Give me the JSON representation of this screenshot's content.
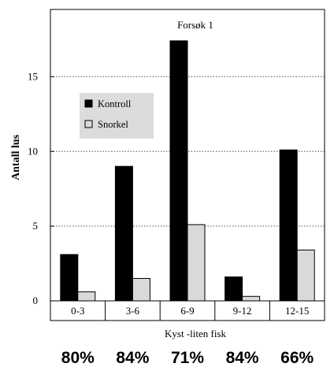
{
  "chart_data": {
    "type": "bar",
    "title": "Forsøk 1",
    "xlabel": "Kyst -liten fisk",
    "ylabel": "Antall lus",
    "categories": [
      "0-3",
      "3-6",
      "6-9",
      "9-12",
      "12-15"
    ],
    "series": [
      {
        "name": "Kontroll",
        "color": "#000000",
        "values": [
          3.1,
          9.0,
          17.4,
          1.6,
          10.1
        ]
      },
      {
        "name": "Snorkel",
        "color": "#d9d9d9",
        "values": [
          0.6,
          1.5,
          5.1,
          0.3,
          3.4
        ]
      }
    ],
    "ylim": [
      0,
      19.5
    ],
    "yticks": [
      0,
      5,
      10,
      15
    ],
    "grid": "horizontal-dotted",
    "legend": "upper-left",
    "percentages": [
      "80%",
      "84%",
      "71%",
      "84%",
      "66%"
    ]
  }
}
